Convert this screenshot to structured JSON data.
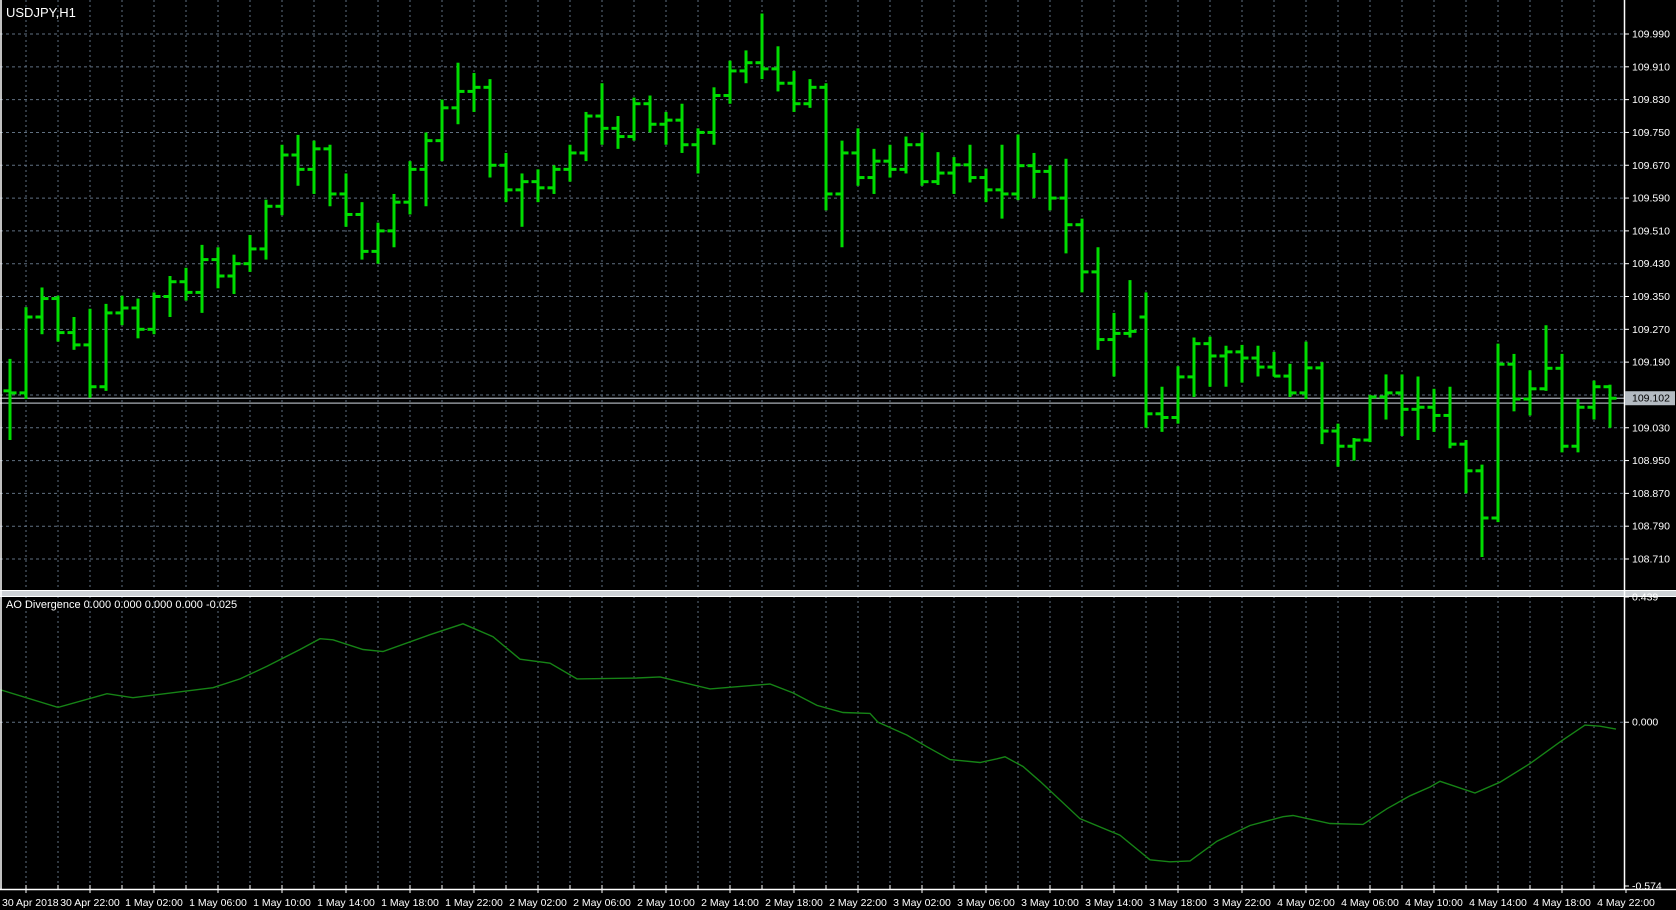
{
  "window": {
    "symbol_period": "USDJPY,H1"
  },
  "indicator_pane": {
    "label": "AO Divergence 0.000 0.000 0.000 0.000 -0.025",
    "name": "AO Divergence",
    "buffer_values": [
      "0.000",
      "0.000",
      "0.000",
      "0.000",
      "-0.025"
    ]
  },
  "colors": {
    "background": "#000000",
    "grid": "#617182",
    "bar_green": "#00dc00",
    "ao_line": "#168316",
    "axis_line": "#ffffff",
    "axis_text": "#ffffff",
    "badge_bg": "#b4bbc2",
    "badge_text": "#000000",
    "bid_line": "#a8aeb4",
    "separator": "#ced2d6"
  },
  "chart_data": [
    {
      "type": "bar",
      "style": "ohlc-bars",
      "title": "USDJPY,H1",
      "symbol": "USDJPY",
      "timeframe": "H1",
      "legend_position": "top-left",
      "grid": "dashed",
      "ylim": [
        108.634,
        110.073
      ],
      "price_ticks": [
        "109.990",
        "109.910",
        "109.830",
        "109.750",
        "109.670",
        "109.590",
        "109.510",
        "109.430",
        "109.350",
        "109.270",
        "109.190",
        "109.110",
        "109.030",
        "108.950",
        "108.870",
        "108.790",
        "108.710"
      ],
      "current_bid": 109.102,
      "current_bid_label": "109.102",
      "extra_hline": 109.09,
      "x_tick_labels": [
        "30 Apr 2018",
        "30 Apr 22:00",
        "1 May 02:00",
        "1 May 06:00",
        "1 May 10:00",
        "1 May 14:00",
        "1 May 18:00",
        "1 May 22:00",
        "2 May 02:00",
        "2 May 06:00",
        "2 May 10:00",
        "2 May 14:00",
        "2 May 18:00",
        "2 May 22:00",
        "3 May 02:00",
        "3 May 06:00",
        "3 May 10:00",
        "3 May 14:00",
        "3 May 18:00",
        "3 May 22:00",
        "4 May 02:00",
        "4 May 06:00",
        "4 May 10:00",
        "4 May 14:00",
        "4 May 18:00",
        "4 May 22:00"
      ],
      "bars_ohlc": [
        [
          109.12,
          109.198,
          109.0,
          109.115
        ],
        [
          109.115,
          109.324,
          109.1,
          109.3
        ],
        [
          109.3,
          109.372,
          109.258,
          109.345
        ],
        [
          109.345,
          109.352,
          109.24,
          109.262
        ],
        [
          109.262,
          109.3,
          109.22,
          109.232
        ],
        [
          109.232,
          109.32,
          109.103,
          109.13
        ],
        [
          109.13,
          109.332,
          109.12,
          109.31
        ],
        [
          109.31,
          109.352,
          109.28,
          109.322
        ],
        [
          109.322,
          109.345,
          109.248,
          109.27
        ],
        [
          109.27,
          109.36,
          109.258,
          109.35
        ],
        [
          109.35,
          109.4,
          109.3,
          109.386
        ],
        [
          109.386,
          109.42,
          109.34,
          109.36
        ],
        [
          109.36,
          109.476,
          109.31,
          109.44
        ],
        [
          109.44,
          109.47,
          109.37,
          109.4
        ],
        [
          109.4,
          109.452,
          109.356,
          109.43
        ],
        [
          109.43,
          109.5,
          109.41,
          109.466
        ],
        [
          109.466,
          109.586,
          109.44,
          109.57
        ],
        [
          109.57,
          109.72,
          109.548,
          109.695
        ],
        [
          109.695,
          109.744,
          109.62,
          109.66
        ],
        [
          109.66,
          109.73,
          109.6,
          109.71
        ],
        [
          109.71,
          109.72,
          109.57,
          109.6
        ],
        [
          109.6,
          109.65,
          109.52,
          109.55
        ],
        [
          109.55,
          109.58,
          109.44,
          109.46
        ],
        [
          109.46,
          109.53,
          109.43,
          109.51
        ],
        [
          109.51,
          109.6,
          109.47,
          109.58
        ],
        [
          109.58,
          109.68,
          109.55,
          109.66
        ],
        [
          109.66,
          109.75,
          109.57,
          109.73
        ],
        [
          109.73,
          109.83,
          109.68,
          109.81
        ],
        [
          109.81,
          109.92,
          109.77,
          109.85
        ],
        [
          109.85,
          109.895,
          109.8,
          109.86
        ],
        [
          109.86,
          109.88,
          109.64,
          109.67
        ],
        [
          109.67,
          109.7,
          109.58,
          109.61
        ],
        [
          109.61,
          109.65,
          109.52,
          109.63
        ],
        [
          109.63,
          109.66,
          109.58,
          109.615
        ],
        [
          109.615,
          109.67,
          109.6,
          109.66
        ],
        [
          109.66,
          109.72,
          109.63,
          109.7
        ],
        [
          109.7,
          109.8,
          109.68,
          109.79
        ],
        [
          109.79,
          109.87,
          109.72,
          109.76
        ],
        [
          109.76,
          109.79,
          109.71,
          109.74
        ],
        [
          109.74,
          109.835,
          109.73,
          109.82
        ],
        [
          109.82,
          109.84,
          109.75,
          109.77
        ],
        [
          109.77,
          109.8,
          109.72,
          109.78
        ],
        [
          109.78,
          109.82,
          109.7,
          109.72
        ],
        [
          109.72,
          109.76,
          109.65,
          109.75
        ],
        [
          109.75,
          109.86,
          109.72,
          109.84
        ],
        [
          109.84,
          109.925,
          109.82,
          109.9
        ],
        [
          109.9,
          109.95,
          109.87,
          109.92
        ],
        [
          109.92,
          110.04,
          109.88,
          109.905
        ],
        [
          109.905,
          109.96,
          109.85,
          109.87
        ],
        [
          109.87,
          109.9,
          109.8,
          109.82
        ],
        [
          109.82,
          109.88,
          109.81,
          109.86
        ],
        [
          109.86,
          109.87,
          109.56,
          109.6
        ],
        [
          109.6,
          109.73,
          109.47,
          109.7
        ],
        [
          109.7,
          109.76,
          109.62,
          109.64
        ],
        [
          109.64,
          109.71,
          109.6,
          109.68
        ],
        [
          109.68,
          109.72,
          109.64,
          109.66
        ],
        [
          109.66,
          109.74,
          109.65,
          109.72
        ],
        [
          109.72,
          109.75,
          109.62,
          109.63
        ],
        [
          109.63,
          109.702,
          109.622,
          109.651
        ],
        [
          109.651,
          109.69,
          109.6,
          109.671
        ],
        [
          109.671,
          109.72,
          109.628,
          109.64
        ],
        [
          109.64,
          109.662,
          109.58,
          109.61
        ],
        [
          109.61,
          109.72,
          109.54,
          109.6
        ],
        [
          109.6,
          109.745,
          109.585,
          109.669
        ],
        [
          109.669,
          109.7,
          109.59,
          109.655
        ],
        [
          109.655,
          109.67,
          109.56,
          109.59
        ],
        [
          109.59,
          109.686,
          109.455,
          109.525
        ],
        [
          109.525,
          109.54,
          109.36,
          109.41
        ],
        [
          109.41,
          109.47,
          109.22,
          109.245
        ],
        [
          109.245,
          109.31,
          109.155,
          109.26
        ],
        [
          109.26,
          109.39,
          109.25,
          109.265
        ],
        [
          109.3,
          109.36,
          109.03,
          109.064
        ],
        [
          109.064,
          109.13,
          109.02,
          109.055
        ],
        [
          109.055,
          109.18,
          109.04,
          109.154
        ],
        [
          109.154,
          109.25,
          109.105,
          109.235
        ],
        [
          109.235,
          109.252,
          109.13,
          109.205
        ],
        [
          109.205,
          109.23,
          109.13,
          109.215
        ],
        [
          109.215,
          109.232,
          109.14,
          109.2
        ],
        [
          109.2,
          109.23,
          109.155,
          109.178
        ],
        [
          109.178,
          109.215,
          109.155,
          109.156
        ],
        [
          109.156,
          109.186,
          109.105,
          109.115
        ],
        [
          109.115,
          109.24,
          109.1,
          109.176
        ],
        [
          109.176,
          109.19,
          108.99,
          109.022
        ],
        [
          109.022,
          109.04,
          108.935,
          108.985
        ],
        [
          108.985,
          109.005,
          108.95,
          109.0
        ],
        [
          109.0,
          109.11,
          108.995,
          109.105
        ],
        [
          109.105,
          109.16,
          109.05,
          109.115
        ],
        [
          109.115,
          109.16,
          109.01,
          109.075
        ],
        [
          109.075,
          109.155,
          109.0,
          109.08
        ],
        [
          109.08,
          109.125,
          109.02,
          109.06
        ],
        [
          109.06,
          109.13,
          108.98,
          108.99
        ],
        [
          108.99,
          109.0,
          108.87,
          108.925
        ],
        [
          108.925,
          108.94,
          108.715,
          108.81
        ],
        [
          108.81,
          109.235,
          108.8,
          109.185
        ],
        [
          109.185,
          109.21,
          109.07,
          109.1
        ],
        [
          109.1,
          109.17,
          109.06,
          109.125
        ],
        [
          109.125,
          109.28,
          109.12,
          109.175
        ],
        [
          109.175,
          109.21,
          108.97,
          108.985
        ],
        [
          108.985,
          109.1,
          108.97,
          109.08
        ],
        [
          109.08,
          109.145,
          109.05,
          109.13
        ],
        [
          109.13,
          109.135,
          109.03,
          109.102
        ]
      ]
    },
    {
      "type": "line",
      "title": "AO Divergence",
      "legend": "AO Divergence 0.000 0.000 0.000 0.000 -0.025",
      "ylim": [
        -0.574,
        0.439
      ],
      "y_ticks": [
        "0.439",
        "0.000",
        "-0.574"
      ],
      "zero_line": 0.0,
      "current_value": -0.025,
      "points_x_value": [
        [
          0,
          0.114
        ],
        [
          58,
          0.052
        ],
        [
          107,
          0.1
        ],
        [
          133,
          0.086
        ],
        [
          213,
          0.121
        ],
        [
          240,
          0.152
        ],
        [
          267,
          0.196
        ],
        [
          300,
          0.255
        ],
        [
          320,
          0.293
        ],
        [
          333,
          0.289
        ],
        [
          363,
          0.255
        ],
        [
          383,
          0.248
        ],
        [
          430,
          0.307
        ],
        [
          463,
          0.345
        ],
        [
          493,
          0.3
        ],
        [
          520,
          0.221
        ],
        [
          550,
          0.207
        ],
        [
          577,
          0.152
        ],
        [
          637,
          0.155
        ],
        [
          660,
          0.159
        ],
        [
          710,
          0.117
        ],
        [
          770,
          0.134
        ],
        [
          793,
          0.103
        ],
        [
          817,
          0.059
        ],
        [
          843,
          0.034
        ],
        [
          870,
          0.031
        ],
        [
          878,
          0.0
        ],
        [
          907,
          -0.045
        ],
        [
          927,
          -0.086
        ],
        [
          950,
          -0.131
        ],
        [
          980,
          -0.141
        ],
        [
          997,
          -0.128
        ],
        [
          1005,
          -0.121
        ],
        [
          1023,
          -0.155
        ],
        [
          1040,
          -0.207
        ],
        [
          1080,
          -0.338
        ],
        [
          1120,
          -0.396
        ],
        [
          1150,
          -0.482
        ],
        [
          1170,
          -0.489
        ],
        [
          1190,
          -0.486
        ],
        [
          1217,
          -0.417
        ],
        [
          1250,
          -0.362
        ],
        [
          1283,
          -0.331
        ],
        [
          1293,
          -0.327
        ],
        [
          1330,
          -0.355
        ],
        [
          1363,
          -0.358
        ],
        [
          1387,
          -0.303
        ],
        [
          1410,
          -0.258
        ],
        [
          1430,
          -0.227
        ],
        [
          1440,
          -0.207
        ],
        [
          1475,
          -0.248
        ],
        [
          1500,
          -0.21
        ],
        [
          1530,
          -0.145
        ],
        [
          1560,
          -0.069
        ],
        [
          1585,
          -0.01
        ],
        [
          1600,
          -0.014
        ],
        [
          1616,
          -0.024
        ]
      ]
    }
  ]
}
